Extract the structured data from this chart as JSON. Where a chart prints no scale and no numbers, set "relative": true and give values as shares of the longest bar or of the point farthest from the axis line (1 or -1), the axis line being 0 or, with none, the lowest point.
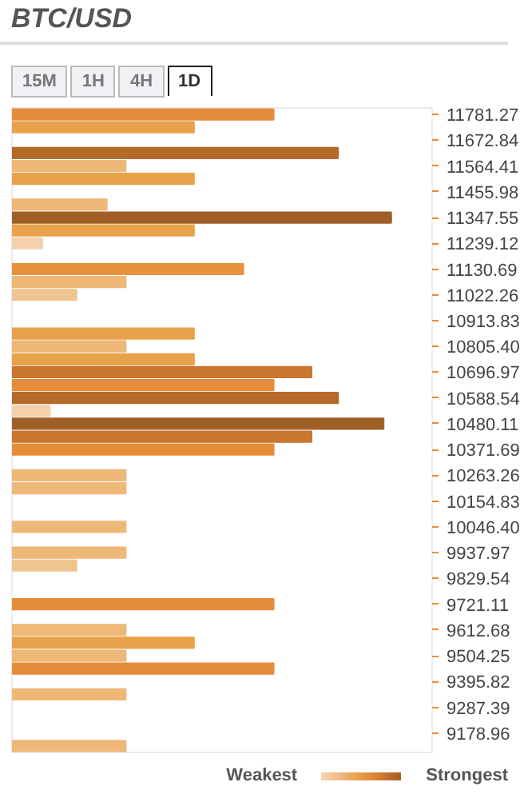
{
  "chart_data": {
    "type": "bar",
    "orientation": "horizontal",
    "relative": true,
    "title": "BTC/USD",
    "annotations": [
      "15M",
      "1H",
      "4H",
      "1D",
      "Weakest",
      "Strongest"
    ],
    "x": [
      11781.27,
      11727.06,
      11672.84,
      11618.63,
      11564.41,
      11510.2,
      11455.98,
      11401.77,
      11347.55,
      11293.34,
      11239.12,
      11184.91,
      11130.69,
      11076.48,
      11022.26,
      10968.05,
      10913.83,
      10859.62,
      10805.4,
      10751.19,
      10696.97,
      10642.76,
      10588.54,
      10534.33,
      10480.11,
      10425.9,
      10371.69,
      10317.48,
      10263.26,
      10209.05,
      10154.83,
      10100.62,
      10046.4,
      9992.19,
      9937.97,
      9883.76,
      9829.54,
      9775.33,
      9721.11,
      9666.9,
      9612.68,
      9558.47,
      9504.25,
      9450.04,
      9395.82,
      9341.61,
      9287.39,
      9233.18,
      9178.96,
      9124.75
    ],
    "values": [
      0.69,
      0.48,
      null,
      0.86,
      0.3,
      0.48,
      null,
      0.25,
      1,
      0.48,
      0.08,
      null,
      0.61,
      0.3,
      0.17,
      null,
      null,
      0.48,
      0.3,
      0.48,
      0.79,
      0.69,
      0.86,
      0.1,
      0.98,
      0.79,
      0.69,
      null,
      0.3,
      0.3,
      null,
      null,
      0.3,
      null,
      0.3,
      0.17,
      null,
      null,
      0.69,
      null,
      0.3,
      0.48,
      0.3,
      0.69,
      null,
      0.3,
      null,
      null,
      null,
      0.3
    ],
    "colors": [
      "#e58c3a",
      "#e9a24c",
      null,
      "#b56a2a",
      "#eeb878",
      "#e9a24c",
      null,
      "#eeb878",
      "#a05f26",
      "#e9a24c",
      "#f3d1ad",
      null,
      "#e8923d",
      "#eeb878",
      "#f0c490",
      null,
      null,
      "#e9a24c",
      "#eeb878",
      "#e9a24c",
      "#c97630",
      "#e58c3a",
      "#b56a2a",
      "#f3d1ad",
      "#a05f26",
      "#c97630",
      "#e58c3a",
      null,
      "#eeb878",
      "#eeb878",
      null,
      null,
      "#eeb878",
      null,
      "#eeb878",
      "#f0c490",
      null,
      null,
      "#e58c3a",
      null,
      "#eeb878",
      "#e9a24c",
      "#eeb878",
      "#e58c3a",
      null,
      "#eeb878",
      null,
      null,
      null,
      "#eeb878"
    ],
    "ylim": [
      9097.64,
      11808.38
    ],
    "yticks": [
      11781.27,
      11672.84,
      11564.41,
      11455.98,
      11347.55,
      11239.12,
      11130.69,
      11022.26,
      10913.83,
      {
        "value": 10805.4,
        "label": "10805.40"
      },
      10696.97,
      10588.54,
      10480.11,
      10371.69,
      10263.26,
      10154.83,
      {
        "value": 10046.4,
        "label": "10046.40"
      },
      9937.97,
      9829.54,
      9721.11,
      9612.68,
      9504.25,
      9395.82,
      9287.39,
      9178.96
    ]
  }
}
